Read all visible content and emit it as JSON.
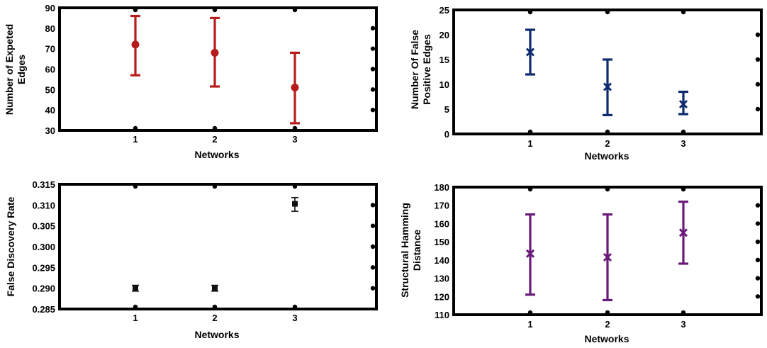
{
  "chart_data": [
    {
      "type": "errorbar",
      "xlabel": "Networks",
      "ylabel": [
        "Number of Expeted",
        "Edges"
      ],
      "categories": [
        "1",
        "2",
        "3"
      ],
      "ylim": [
        30,
        90
      ],
      "yticks": [
        30,
        40,
        50,
        60,
        70,
        80,
        90
      ],
      "marker": "circle",
      "color": "#b71c1c",
      "series": [
        {
          "mean": [
            72,
            68,
            51
          ],
          "lower": [
            57,
            51.5,
            33.5
          ],
          "upper": [
            86,
            85,
            68
          ]
        }
      ]
    },
    {
      "type": "errorbar",
      "xlabel": "Networks",
      "ylabel": [
        "Number Of False",
        "Positive Edges"
      ],
      "categories": [
        "1",
        "2",
        "3"
      ],
      "ylim": [
        0,
        25
      ],
      "yticks": [
        0,
        5,
        10,
        15,
        20,
        25
      ],
      "marker": "cross",
      "color": "#0d2b6e",
      "series": [
        {
          "mean": [
            16.5,
            9.5,
            6
          ],
          "lower": [
            12,
            3.8,
            4
          ],
          "upper": [
            21,
            15,
            8.5
          ]
        }
      ]
    },
    {
      "type": "errorbar",
      "xlabel": "Networks",
      "ylabel": [
        "False Discovery Rate"
      ],
      "categories": [
        "1",
        "2",
        "3"
      ],
      "ylim": [
        0.285,
        0.315
      ],
      "yticks": [
        0.285,
        0.29,
        0.295,
        0.3,
        0.305,
        0.31,
        0.315
      ],
      "tick_decimals": 3,
      "marker": "square",
      "color": "#111111",
      "series": [
        {
          "mean": [
            0.29,
            0.29,
            0.3103
          ],
          "lower": [
            0.2893,
            0.2893,
            0.3085
          ],
          "upper": [
            0.2907,
            0.2907,
            0.3118
          ]
        }
      ]
    },
    {
      "type": "errorbar",
      "xlabel": "Networks",
      "ylabel": [
        "Structural Hamming",
        "Distance"
      ],
      "categories": [
        "1",
        "2",
        "3"
      ],
      "ylim": [
        110,
        180
      ],
      "yticks": [
        110,
        120,
        130,
        140,
        150,
        160,
        170,
        180
      ],
      "marker": "cross",
      "color": "#6a1b7a",
      "series": [
        {
          "mean": [
            143.5,
            141.5,
            155
          ],
          "lower": [
            121,
            118,
            138
          ],
          "upper": [
            165,
            165,
            172
          ]
        }
      ]
    }
  ]
}
